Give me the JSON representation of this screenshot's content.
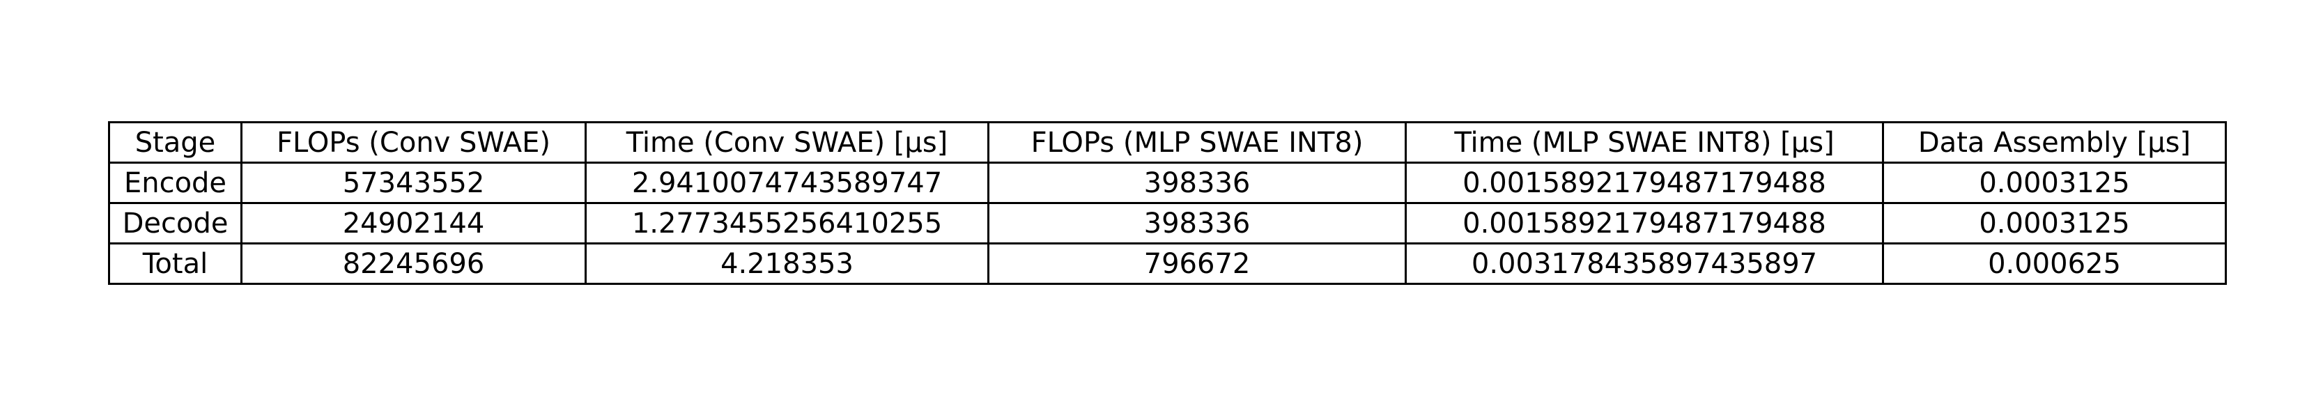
{
  "chart_data": {
    "type": "table",
    "columns": [
      "Stage",
      "FLOPs (Conv SWAE)",
      "Time (Conv SWAE) [µs]",
      "FLOPs (MLP SWAE INT8)",
      "Time (MLP SWAE INT8) [µs]",
      "Data Assembly [µs]"
    ],
    "rows": [
      [
        "Encode",
        "57343552",
        "2.9410074743589747",
        "398336",
        "0.0015892179487179488",
        "0.0003125"
      ],
      [
        "Decode",
        "24902144",
        "1.2773455256410255",
        "398336",
        "0.0015892179487179488",
        "0.0003125"
      ],
      [
        "Total",
        "82245696",
        "4.218353",
        "796672",
        "0.003178435897435897",
        "0.000625"
      ]
    ]
  }
}
